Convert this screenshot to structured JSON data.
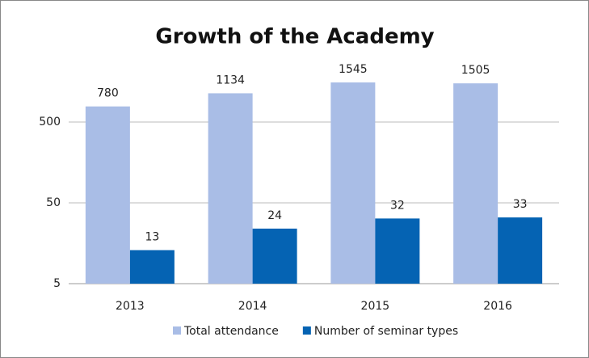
{
  "chart_data": {
    "type": "bar",
    "title": "Growth of the Academy",
    "categories": [
      "2013",
      "2014",
      "2015",
      "2016"
    ],
    "series": [
      {
        "name": "Total attendance",
        "color": "#a9bde6",
        "values": [
          780,
          1134,
          1545,
          1505
        ]
      },
      {
        "name": "Number of seminar types",
        "color": "#0563b3",
        "values": [
          13,
          24,
          32,
          33
        ]
      }
    ],
    "ylim": [
      5,
      5000
    ],
    "yticks": [
      5,
      50,
      500
    ],
    "log_scale": true,
    "grid": true,
    "legend": "bottom"
  }
}
